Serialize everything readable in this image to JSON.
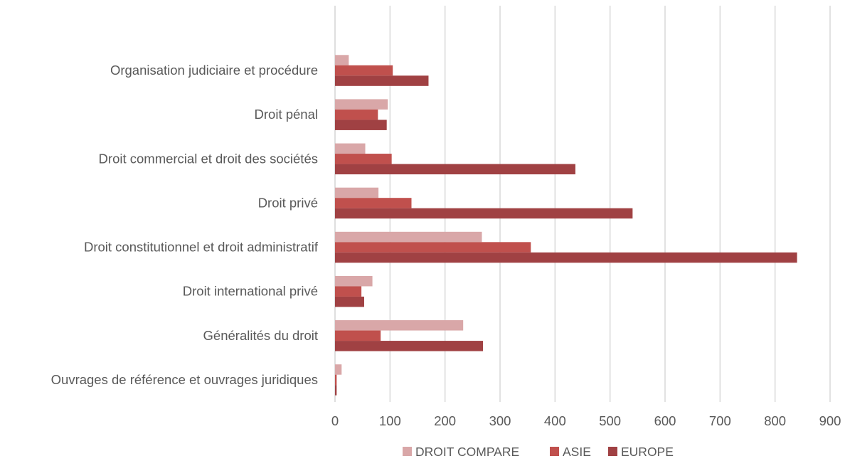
{
  "chart_data": {
    "type": "bar",
    "orientation": "horizontal",
    "title": "",
    "xlabel": "",
    "ylabel": "",
    "categories": [
      "Organisation judiciaire et procédure",
      "Droit pénal",
      "Droit commercial et droit des sociétés",
      "Droit privé",
      "Droit constitutionnel et droit administratif",
      "Droit international privé",
      "Généralités du droit",
      "Ouvrages de référence et ouvrages juridiques"
    ],
    "series": [
      {
        "name": "DROIT COMPARE",
        "color": "#d9a7a8",
        "values": [
          25,
          96,
          55,
          79,
          267,
          68,
          233,
          12
        ]
      },
      {
        "name": "ASIE",
        "color": "#c0504d",
        "values": [
          105,
          78,
          103,
          139,
          356,
          48,
          83,
          3
        ]
      },
      {
        "name": "EUROPE",
        "color": "#a04143",
        "values": [
          170,
          94,
          437,
          541,
          840,
          53,
          269,
          3
        ]
      }
    ],
    "xlim": [
      0,
      900
    ],
    "xticks": [
      0,
      100,
      200,
      300,
      400,
      500,
      600,
      700,
      800,
      900
    ],
    "grid": true,
    "gridline_color": "#d9d9d9",
    "legend_position": "bottom"
  }
}
